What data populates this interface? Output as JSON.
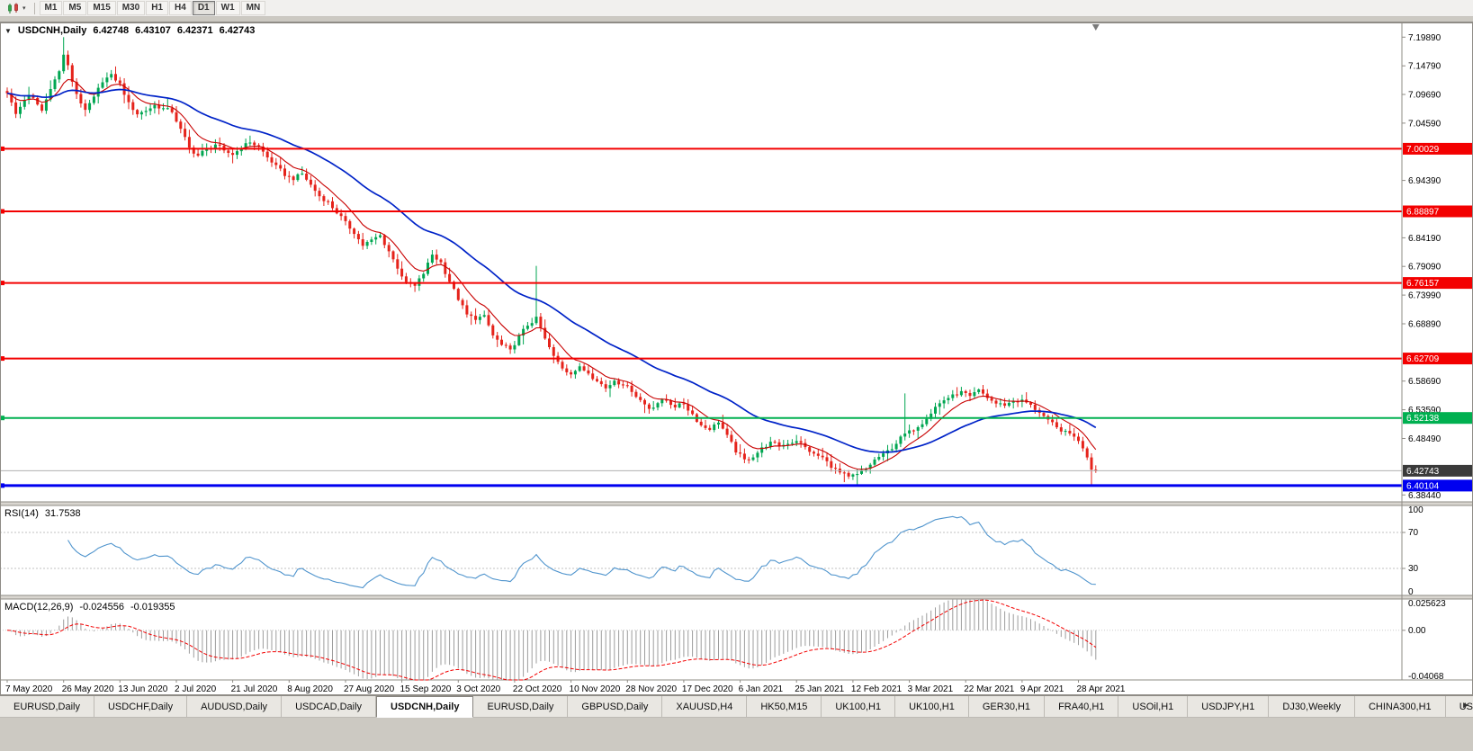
{
  "toolbar": {
    "timeframes": [
      "M1",
      "M5",
      "M15",
      "M30",
      "H1",
      "H4",
      "D1",
      "W1",
      "MN"
    ],
    "active_timeframe": "D1",
    "dropdown_glyph": "▾"
  },
  "chart": {
    "collapse_glyph": "▼",
    "symbol_display": "USDCNH,Daily",
    "ohlc": {
      "open": "6.42748",
      "high": "6.43107",
      "low": "6.42371",
      "close": "6.42743"
    }
  },
  "chart_data": {
    "type": "candlestick",
    "symbol": "USDCNH",
    "timeframe": "Daily",
    "price_range": {
      "min": 6.372,
      "max": 7.225
    },
    "candle_count": 252,
    "up_color": "#00a651",
    "down_color": "#e5231b",
    "y_axis_labels": [
      "7.19890",
      "7.14790",
      "7.09690",
      "7.04590",
      "6.94390",
      "6.84190",
      "6.79090",
      "6.73990",
      "6.68890",
      "6.58690",
      "6.53590",
      "6.48490",
      "6.38440"
    ],
    "x_axis_labels": [
      "7 May 2020",
      "26 May 2020",
      "13 Jun 2020",
      "2 Jul 2020",
      "21 Jul 2020",
      "8 Aug 2020",
      "27 Aug 2020",
      "15 Sep 2020",
      "3 Oct 2020",
      "22 Oct 2020",
      "10 Nov 2020",
      "28 Nov 2020",
      "17 Dec 2020",
      "6 Jan 2021",
      "25 Jan 2021",
      "12 Feb 2021",
      "3 Mar 2021",
      "22 Mar 2021",
      "9 Apr 2021",
      "28 Apr 2021"
    ],
    "candles_per_x_label": 13,
    "close_anchors": [
      [
        0,
        7.1
      ],
      [
        1,
        7.082
      ],
      [
        2,
        7.062
      ],
      [
        3,
        7.075
      ],
      [
        4,
        7.088
      ],
      [
        5,
        7.095
      ],
      [
        6,
        7.09
      ],
      [
        8,
        7.068
      ],
      [
        10,
        7.108
      ],
      [
        12,
        7.138
      ],
      [
        13,
        7.168
      ],
      [
        14,
        7.148
      ],
      [
        15,
        7.12
      ],
      [
        16,
        7.098
      ],
      [
        18,
        7.068
      ],
      [
        20,
        7.092
      ],
      [
        22,
        7.12
      ],
      [
        24,
        7.132
      ],
      [
        26,
        7.116
      ],
      [
        28,
        7.082
      ],
      [
        30,
        7.062
      ],
      [
        32,
        7.068
      ],
      [
        34,
        7.078
      ],
      [
        36,
        7.072
      ],
      [
        38,
        7.066
      ],
      [
        40,
        7.035
      ],
      [
        42,
        7.002
      ],
      [
        44,
        6.988
      ],
      [
        46,
        7.0
      ],
      [
        48,
        7.008
      ],
      [
        50,
        6.996
      ],
      [
        52,
        6.99
      ],
      [
        54,
        7.002
      ],
      [
        56,
        7.012
      ],
      [
        58,
        7.004
      ],
      [
        60,
        6.985
      ],
      [
        62,
        6.97
      ],
      [
        64,
        6.953
      ],
      [
        66,
        6.946
      ],
      [
        68,
        6.956
      ],
      [
        70,
        6.936
      ],
      [
        72,
        6.916
      ],
      [
        74,
        6.906
      ],
      [
        76,
        6.886
      ],
      [
        78,
        6.87
      ],
      [
        80,
        6.85
      ],
      [
        82,
        6.828
      ],
      [
        84,
        6.838
      ],
      [
        86,
        6.846
      ],
      [
        88,
        6.818
      ],
      [
        90,
        6.788
      ],
      [
        92,
        6.762
      ],
      [
        94,
        6.756
      ],
      [
        96,
        6.778
      ],
      [
        98,
        6.812
      ],
      [
        100,
        6.798
      ],
      [
        102,
        6.764
      ],
      [
        104,
        6.732
      ],
      [
        106,
        6.705
      ],
      [
        108,
        6.697
      ],
      [
        110,
        6.703
      ],
      [
        112,
        6.668
      ],
      [
        114,
        6.651
      ],
      [
        116,
        6.642
      ],
      [
        118,
        6.667
      ],
      [
        120,
        6.686
      ],
      [
        122,
        6.7
      ],
      [
        124,
        6.662
      ],
      [
        126,
        6.631
      ],
      [
        128,
        6.61
      ],
      [
        130,
        6.6
      ],
      [
        132,
        6.612
      ],
      [
        134,
        6.601
      ],
      [
        136,
        6.588
      ],
      [
        138,
        6.574
      ],
      [
        140,
        6.588
      ],
      [
        142,
        6.581
      ],
      [
        144,
        6.569
      ],
      [
        146,
        6.553
      ],
      [
        148,
        6.538
      ],
      [
        150,
        6.548
      ],
      [
        152,
        6.553
      ],
      [
        154,
        6.541
      ],
      [
        156,
        6.546
      ],
      [
        158,
        6.528
      ],
      [
        160,
        6.508
      ],
      [
        162,
        6.501
      ],
      [
        164,
        6.514
      ],
      [
        166,
        6.49
      ],
      [
        168,
        6.461
      ],
      [
        170,
        6.447
      ],
      [
        172,
        6.452
      ],
      [
        174,
        6.468
      ],
      [
        176,
        6.478
      ],
      [
        178,
        6.471
      ],
      [
        180,
        6.476
      ],
      [
        182,
        6.481
      ],
      [
        184,
        6.469
      ],
      [
        186,
        6.457
      ],
      [
        188,
        6.451
      ],
      [
        190,
        6.434
      ],
      [
        192,
        6.424
      ],
      [
        194,
        6.416
      ],
      [
        196,
        6.421
      ],
      [
        198,
        6.431
      ],
      [
        200,
        6.447
      ],
      [
        202,
        6.457
      ],
      [
        204,
        6.467
      ],
      [
        206,
        6.487
      ],
      [
        208,
        6.498
      ],
      [
        210,
        6.506
      ],
      [
        212,
        6.521
      ],
      [
        214,
        6.541
      ],
      [
        216,
        6.553
      ],
      [
        218,
        6.562
      ],
      [
        220,
        6.568
      ],
      [
        222,
        6.559
      ],
      [
        224,
        6.571
      ],
      [
        226,
        6.557
      ],
      [
        228,
        6.547
      ],
      [
        230,
        6.544
      ],
      [
        232,
        6.551
      ],
      [
        234,
        6.553
      ],
      [
        236,
        6.544
      ],
      [
        238,
        6.531
      ],
      [
        240,
        6.517
      ],
      [
        242,
        6.504
      ],
      [
        244,
        6.497
      ],
      [
        246,
        6.489
      ],
      [
        248,
        6.468
      ],
      [
        249,
        6.452
      ],
      [
        250,
        6.43
      ],
      [
        251,
        6.4274
      ]
    ],
    "spikes": [
      {
        "i": 13,
        "high": 7.1989
      },
      {
        "i": 14,
        "high": 7.175
      },
      {
        "i": 122,
        "high": 6.792
      },
      {
        "i": 207,
        "high": 6.565
      },
      {
        "i": 193,
        "low": 6.407
      },
      {
        "i": 196,
        "low": 6.402
      },
      {
        "i": 250,
        "low": 6.401
      },
      {
        "i": 251,
        "low": 6.4237
      }
    ],
    "moving_averages": [
      {
        "name": "fast-ma",
        "period": 9,
        "color": "#c80000",
        "width": 1.1
      },
      {
        "name": "slow-ma",
        "period": 35,
        "color": "#0023c8",
        "width": 1.7
      }
    ],
    "horizontal_lines": [
      {
        "price": 7.00029,
        "label": "7.00029",
        "color": "#f30000",
        "width": 2
      },
      {
        "price": 6.88897,
        "label": "6.88897",
        "color": "#f30000",
        "width": 2
      },
      {
        "price": 6.76157,
        "label": "6.76157",
        "color": "#f30000",
        "width": 2
      },
      {
        "price": 6.62709,
        "label": "6.62709",
        "color": "#f30000",
        "width": 2
      },
      {
        "price": 6.52138,
        "label": "6.52138",
        "color": "#00b050",
        "width": 2
      },
      {
        "price": 6.40104,
        "label": "6.40104",
        "color": "#0000f0",
        "width": 3
      }
    ],
    "current_price": {
      "price": 6.42743,
      "label": "6.42743",
      "tag_color": "#3a3a3a",
      "line_color": "#b0b0b0"
    },
    "indicators": {
      "rsi": {
        "label": "RSI(14)",
        "value": "31.7538",
        "period": 14,
        "levels": [
          "100",
          "70",
          "30",
          "0"
        ],
        "level_lines": [
          70,
          30
        ],
        "line_color": "#4f94cd"
      },
      "macd": {
        "label": "MACD(12,26,9)",
        "value_main": "-0.024556",
        "value_signal": "-0.019355",
        "scale_labels": [
          "0.025623",
          "0.00",
          "-0.04068"
        ],
        "range": {
          "max": 0.025623,
          "min": -0.04068
        },
        "hist_color": "#9c9c9c",
        "signal_color": "#f30000"
      }
    }
  },
  "tabs": {
    "items": [
      "EURUSD,Daily",
      "USDCHF,Daily",
      "AUDUSD,Daily",
      "USDCAD,Daily",
      "USDCNH,Daily",
      "EURUSD,Daily",
      "GBPUSD,Daily",
      "XAUUSD,H4",
      "HK50,M15",
      "UK100,H1",
      "UK100,H1",
      "GER30,H1",
      "FRA40,H1",
      "USOil,H1",
      "USDJPY,H1",
      "DJ30,Weekly",
      "CHINA300,H1",
      "USC"
    ],
    "active_index": 4,
    "scroll_right_glyph": "►"
  }
}
